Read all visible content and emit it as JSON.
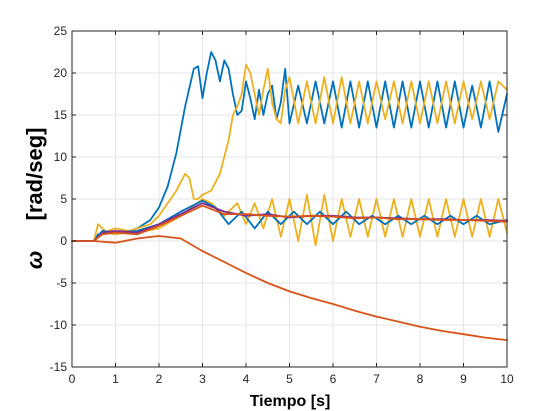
{
  "chart_data": {
    "type": "line",
    "xlabel": "Tiempo [s]",
    "ylabel": "[rad/seg]",
    "ylabel_symbol": "ω",
    "xlim": [
      0,
      10
    ],
    "ylim": [
      -15,
      25
    ],
    "xticks": [
      "0",
      "1",
      "2",
      "3",
      "4",
      "5",
      "6",
      "7",
      "8",
      "9",
      "10"
    ],
    "yticks": [
      "-15",
      "-10",
      "-5",
      "0",
      "5",
      "10",
      "15",
      "20",
      "25"
    ],
    "grid": true,
    "series": [
      {
        "color": "#0072BD",
        "x": [
          0,
          0.5,
          0.6,
          0.8,
          1.0,
          1.2,
          1.5,
          1.8,
          2.0,
          2.2,
          2.4,
          2.6,
          2.8,
          2.9,
          3.0,
          3.1,
          3.2,
          3.3,
          3.4,
          3.5,
          3.6,
          3.7,
          3.8,
          3.9,
          4.0,
          4.1,
          4.2,
          4.3,
          4.4,
          4.5,
          4.6,
          4.7,
          4.8,
          4.9,
          5.0,
          5.2,
          5.4,
          5.6,
          5.8,
          6.0,
          6.2,
          6.4,
          6.6,
          6.8,
          7.0,
          7.2,
          7.4,
          7.6,
          7.8,
          8.0,
          8.2,
          8.4,
          8.6,
          8.8,
          9.0,
          9.2,
          9.4,
          9.6,
          9.8,
          10.0
        ],
        "values": [
          0,
          0,
          0.8,
          1.0,
          0.8,
          1.0,
          1.5,
          2.5,
          4.0,
          6.5,
          10.5,
          16.0,
          20.5,
          20.8,
          17.0,
          20.0,
          22.5,
          21.5,
          19.0,
          21.5,
          20.5,
          17.5,
          15.0,
          15.5,
          19.0,
          17.0,
          14.5,
          18.0,
          15.0,
          17.5,
          18.5,
          14.5,
          16.5,
          20.5,
          14.0,
          18.5,
          14.0,
          19.0,
          14.0,
          19.0,
          13.5,
          19.0,
          13.5,
          19.0,
          13.5,
          19.0,
          13.5,
          19.0,
          13.5,
          19.0,
          13.5,
          19.0,
          13.5,
          19.0,
          13.5,
          18.5,
          13.5,
          19.0,
          13.0,
          17.5
        ]
      },
      {
        "color": "#EDB120",
        "x": [
          0,
          0.5,
          0.6,
          0.8,
          1.0,
          1.2,
          1.5,
          1.8,
          2.0,
          2.2,
          2.4,
          2.6,
          2.7,
          2.8,
          2.9,
          3.0,
          3.2,
          3.4,
          3.6,
          3.7,
          3.8,
          3.9,
          4.0,
          4.1,
          4.2,
          4.3,
          4.4,
          4.5,
          4.6,
          4.7,
          4.8,
          4.9,
          5.0,
          5.2,
          5.4,
          5.6,
          5.8,
          6.0,
          6.2,
          6.4,
          6.6,
          6.8,
          7.0,
          7.2,
          7.4,
          7.6,
          7.8,
          8.0,
          8.2,
          8.4,
          8.6,
          8.8,
          9.0,
          9.2,
          9.4,
          9.6,
          9.8,
          10.0
        ],
        "values": [
          0,
          0,
          2.0,
          1.0,
          0.8,
          1.0,
          1.5,
          2.0,
          3.0,
          4.5,
          6.0,
          8.0,
          7.5,
          5.0,
          5.0,
          5.5,
          6.0,
          8.0,
          12.0,
          15.0,
          16.0,
          17.5,
          21.0,
          20.0,
          17.5,
          15.0,
          18.0,
          20.5,
          16.5,
          14.5,
          14.0,
          18.0,
          19.5,
          14.0,
          19.0,
          14.0,
          19.5,
          14.0,
          19.5,
          14.0,
          19.0,
          14.0,
          19.0,
          14.5,
          19.0,
          14.0,
          19.0,
          14.0,
          19.0,
          14.0,
          19.0,
          14.0,
          19.0,
          14.5,
          19.0,
          14.5,
          19.0,
          18.0
        ]
      },
      {
        "color": "#D95319",
        "x": [
          0,
          0.5,
          1.0,
          1.5,
          2.0,
          2.5,
          3.0,
          3.5,
          4.0,
          4.5,
          5.0,
          5.5,
          6.0,
          6.5,
          7.0,
          7.5,
          8.0,
          8.5,
          9.0,
          9.5,
          10.0
        ],
        "values": [
          0,
          0,
          -0.2,
          0.3,
          0.6,
          0.3,
          -1.2,
          -2.5,
          -3.8,
          -5.0,
          -6.0,
          -6.8,
          -7.5,
          -8.3,
          -9.0,
          -9.6,
          -10.2,
          -10.7,
          -11.1,
          -11.5,
          -11.8
        ]
      },
      {
        "color": "#EDB120",
        "x": [
          0,
          0.5,
          0.7,
          1.0,
          1.5,
          2.0,
          2.5,
          3.0,
          3.2,
          3.5,
          3.8,
          4.0,
          4.2,
          4.4,
          4.6,
          4.8,
          5.0,
          5.2,
          5.4,
          5.6,
          5.8,
          6.0,
          6.2,
          6.4,
          6.6,
          6.8,
          7.0,
          7.2,
          7.4,
          7.6,
          7.8,
          8.0,
          8.2,
          8.4,
          8.6,
          8.8,
          9.0,
          9.2,
          9.4,
          9.6,
          9.8,
          10.0
        ],
        "values": [
          0,
          0,
          1.0,
          1.5,
          1.0,
          1.5,
          3.0,
          5.0,
          4.5,
          3.0,
          4.5,
          2.0,
          4.5,
          1.5,
          5.0,
          0.5,
          5.0,
          0.0,
          5.5,
          -0.5,
          5.5,
          0.0,
          5.0,
          0.5,
          5.0,
          0.5,
          5.0,
          0.5,
          5.0,
          0.5,
          5.0,
          0.5,
          5.0,
          0.5,
          5.0,
          0.5,
          5.0,
          0.5,
          5.0,
          0.5,
          5.0,
          1.0
        ]
      },
      {
        "color": "#0072BD",
        "x": [
          0,
          0.5,
          0.7,
          1.0,
          1.5,
          2.0,
          2.5,
          3.0,
          3.3,
          3.6,
          3.9,
          4.2,
          4.5,
          4.8,
          5.1,
          5.4,
          5.7,
          6.0,
          6.3,
          6.6,
          6.9,
          7.2,
          7.5,
          7.8,
          8.1,
          8.4,
          8.7,
          9.0,
          9.3,
          9.6,
          10.0
        ],
        "values": [
          0,
          0,
          1.2,
          1.0,
          1.2,
          2.0,
          3.5,
          4.8,
          4.0,
          2.0,
          3.5,
          1.5,
          3.5,
          2.0,
          3.5,
          2.0,
          3.5,
          2.0,
          3.5,
          2.0,
          3.0,
          2.0,
          3.0,
          2.0,
          3.0,
          2.0,
          3.0,
          2.0,
          3.0,
          2.0,
          2.5
        ]
      },
      {
        "color": "#7E2F8E",
        "x": [
          0,
          0.5,
          0.7,
          1.0,
          1.5,
          2.0,
          2.5,
          3.0,
          3.5,
          4.0,
          4.5,
          5.0,
          5.5,
          6.0,
          6.5,
          7.0,
          7.5,
          8.0,
          8.5,
          9.0,
          9.5,
          10.0
        ],
        "values": [
          0,
          0,
          1.0,
          1.2,
          1.0,
          2.0,
          3.2,
          4.5,
          3.5,
          3.0,
          3.2,
          2.8,
          3.0,
          3.0,
          2.8,
          2.8,
          2.7,
          2.6,
          2.6,
          2.5,
          2.5,
          2.4
        ]
      },
      {
        "color": "#D95319",
        "x": [
          0,
          0.5,
          0.7,
          1.0,
          1.5,
          2.0,
          2.5,
          3.0,
          3.5,
          4.0,
          4.5,
          5.0,
          5.5,
          6.0,
          6.5,
          7.0,
          7.5,
          8.0,
          8.5,
          9.0,
          9.5,
          10.0
        ],
        "values": [
          0,
          0,
          0.8,
          1.0,
          0.8,
          1.8,
          3.0,
          4.2,
          3.2,
          3.2,
          3.0,
          2.9,
          3.0,
          2.9,
          2.7,
          2.8,
          2.6,
          2.6,
          2.5,
          2.5,
          2.4,
          2.3
        ]
      }
    ]
  }
}
